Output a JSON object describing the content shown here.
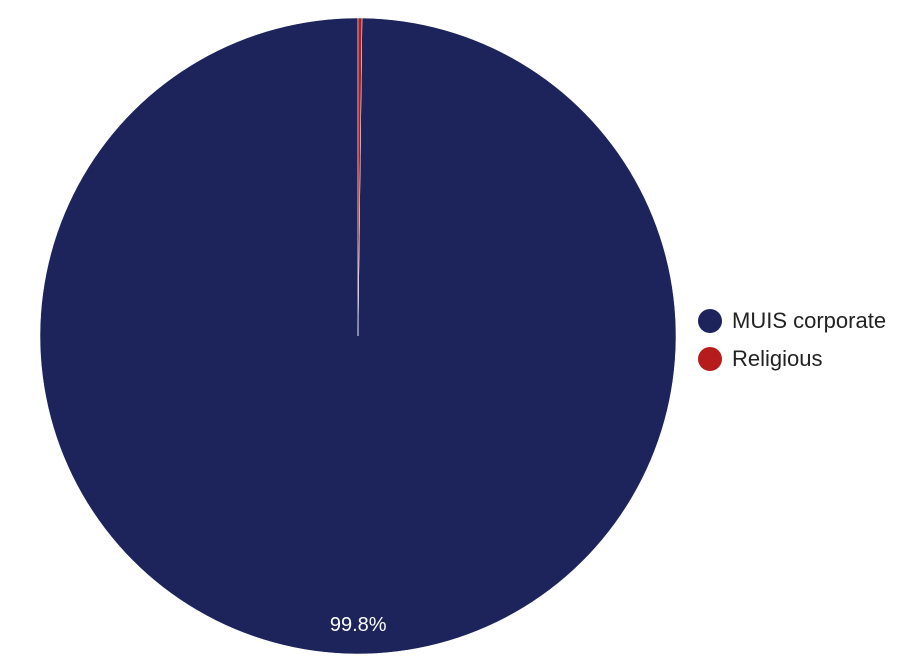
{
  "chart_data": {
    "type": "pie",
    "title": "",
    "slices": [
      {
        "name": "MUIS corporate",
        "value": 99.8,
        "color": "#1c245b"
      },
      {
        "name": "Religious",
        "value": 0.2,
        "color": "#b71c1c"
      }
    ],
    "data_labels": [
      "99.8%",
      ""
    ],
    "legend_position": "right"
  }
}
